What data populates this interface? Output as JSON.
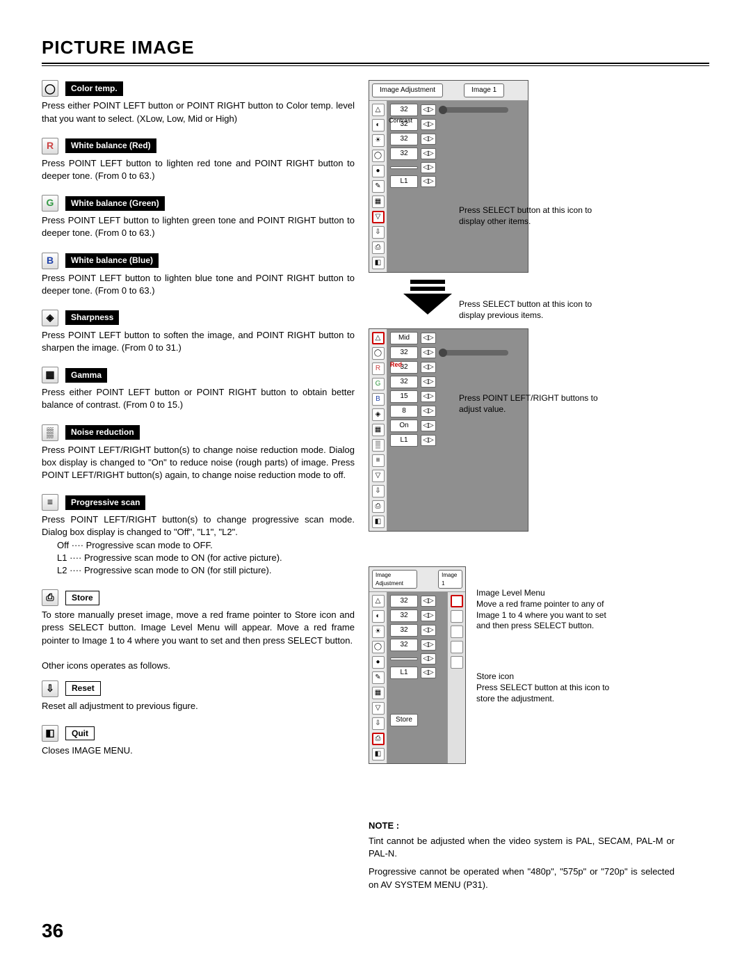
{
  "page": {
    "title": "PICTURE IMAGE",
    "number": "36"
  },
  "sections": [
    {
      "icon": "◯",
      "label": "Color temp.",
      "body": "Press either POINT LEFT button or POINT RIGHT button to Color temp. level that you want to select. (XLow, Low, Mid or High)"
    },
    {
      "icon": "R",
      "iconColor": "#cc4444",
      "label": "White balance (Red)",
      "body": "Press POINT LEFT button to lighten red tone and POINT RIGHT button to deeper tone.  (From 0 to 63.)"
    },
    {
      "icon": "G",
      "iconColor": "#339944",
      "label": "White balance (Green)",
      "body": "Press POINT LEFT button to lighten green tone and POINT RIGHT button to deeper tone.  (From 0 to 63.)"
    },
    {
      "icon": "B",
      "iconColor": "#2244aa",
      "label": "White balance (Blue)",
      "body": "Press POINT LEFT button to lighten blue tone and POINT RIGHT button to deeper tone.  (From 0 to 63.)"
    },
    {
      "icon": "◈",
      "label": "Sharpness",
      "body": "Press POINT LEFT button to soften the image, and POINT RIGHT button to sharpen the image.  (From 0 to 31.)"
    },
    {
      "icon": "▦",
      "label": "Gamma",
      "body": "Press either POINT LEFT button or POINT RIGHT button to obtain better balance of contrast.  (From 0 to 15.)"
    },
    {
      "icon": "▒",
      "label": "Noise reduction",
      "body": "Press POINT LEFT/RIGHT button(s) to change noise reduction mode.  Dialog box display is changed to \"On\" to reduce noise (rough parts) of image. Press POINT LEFT/RIGHT button(s) again, to change noise reduction mode to off."
    },
    {
      "icon": "≡",
      "label": "Progressive scan",
      "body": "Press POINT LEFT/RIGHT button(s) to change progressive scan mode.  Dialog box display is changed to \"Off\", \"L1\", \"L2\".",
      "list": [
        "Off ···· Progressive scan mode to OFF.",
        "L1 ···· Progressive scan mode to ON (for active picture).",
        "L2 ···· Progressive scan mode to ON (for still picture)."
      ]
    },
    {
      "icon": "⎙",
      "label": "Store",
      "outline": true,
      "body": "To store manually preset image, move a red frame pointer to Store icon and press SELECT button.  Image Level Menu will appear. Move a red frame pointer to Image 1 to 4 where you want to set and then press SELECT button."
    }
  ],
  "otherText": "Other icons operates as follows.",
  "reset": {
    "icon": "⇩",
    "label": "Reset",
    "body": "Reset all adjustment to previous figure."
  },
  "quit": {
    "icon": "◧",
    "label": "Quit",
    "body": "Closes IMAGE MENU."
  },
  "rightPanel1": {
    "tab1": "Image Adjustment",
    "tab2": "Image 1",
    "rows": [
      {
        "val": "32",
        "slider": true
      },
      {
        "val": "32",
        "label": "Contrast"
      },
      {
        "val": "32"
      },
      {
        "val": "32"
      },
      {
        "val": ""
      },
      {
        "val": "L1"
      }
    ]
  },
  "callout1": "Press SELECT button at this icon to display other items.",
  "callout2a": "Press SELECT button at this icon to display previous items.",
  "callout2b": "Press POINT LEFT/RIGHT buttons to adjust value.",
  "rightPanel2": {
    "rows": [
      {
        "val": "Mid"
      },
      {
        "val": "32",
        "label": "R",
        "slider": true
      },
      {
        "val": "32",
        "label": "G",
        "redLabel": "Red"
      },
      {
        "val": "32",
        "label": "B"
      },
      {
        "val": "15"
      },
      {
        "val": "8"
      },
      {
        "val": "On"
      },
      {
        "val": "L1"
      }
    ]
  },
  "rightPanel3": {
    "tab1": "Image Adjustment",
    "tab2": "Image 1",
    "rows": [
      {
        "val": "32"
      },
      {
        "val": "32"
      },
      {
        "val": "32"
      },
      {
        "val": "32"
      },
      {
        "val": ""
      },
      {
        "val": "L1"
      }
    ],
    "storeLabel": "Store"
  },
  "callout3a": "Image Level Menu\nMove a red frame pointer to any of Image 1 to 4 where you want to set and then press SELECT button.",
  "callout3b": "Store icon\nPress SELECT button at this icon to store the adjustment.",
  "note": {
    "title": "NOTE :",
    "body1": "Tint cannot be adjusted when the video system is PAL, SECAM, PAL-M or PAL-N.",
    "body2": "Progressive cannot be operated when \"480p\", \"575p\" or \"720p\" is selected on AV SYSTEM MENU (P31)."
  }
}
